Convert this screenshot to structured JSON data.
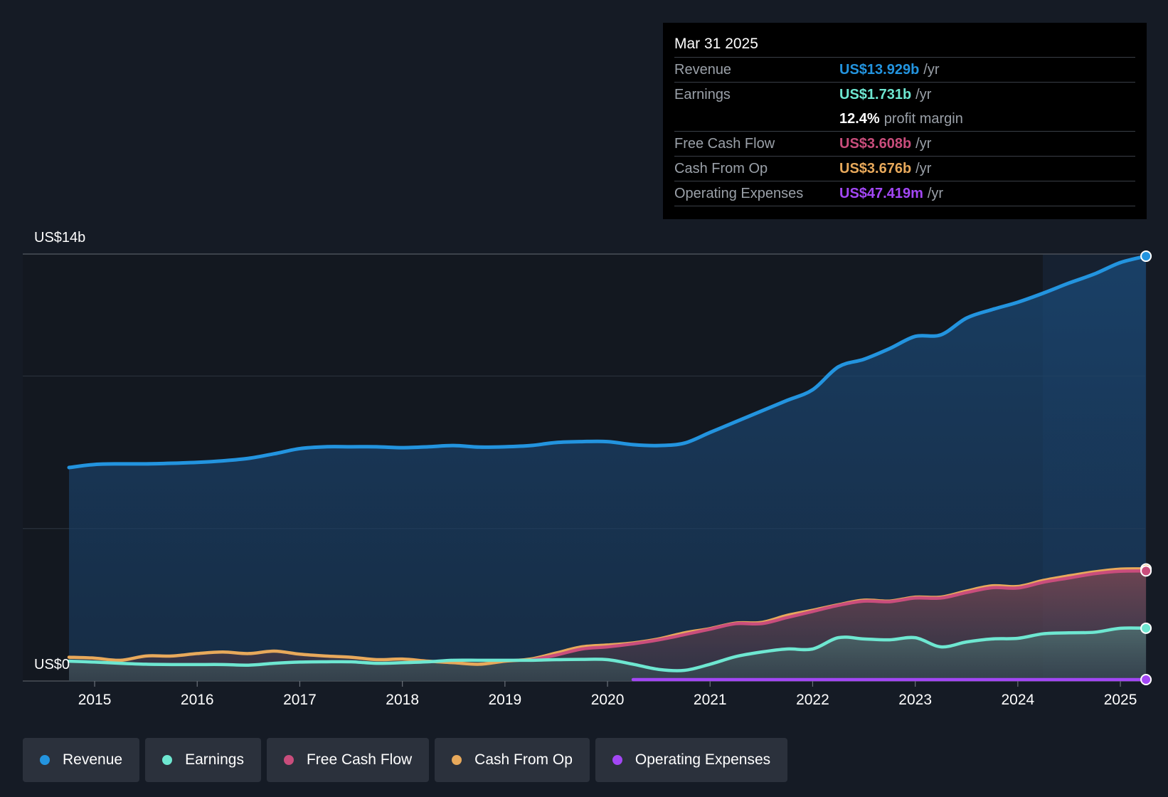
{
  "colors": {
    "revenue": "#2394df",
    "earnings": "#6ee7d1",
    "free_cash_flow": "#c94d7c",
    "cash_from_op": "#e8a95b",
    "operating_expenses": "#a347f5"
  },
  "tooltip": {
    "date": "Mar 31 2025",
    "rows": [
      {
        "label": "Revenue",
        "value": "US$13.929b",
        "unit": "/yr"
      },
      {
        "label": "Earnings",
        "value": "US$1.731b",
        "unit": "/yr"
      },
      {
        "label": "",
        "value": "12.4%",
        "unit": "profit margin"
      },
      {
        "label": "Free Cash Flow",
        "value": "US$3.608b",
        "unit": "/yr"
      },
      {
        "label": "Cash From Op",
        "value": "US$3.676b",
        "unit": "/yr"
      },
      {
        "label": "Operating Expenses",
        "value": "US$47.419m",
        "unit": "/yr"
      }
    ]
  },
  "legend": [
    {
      "label": "Revenue"
    },
    {
      "label": "Earnings"
    },
    {
      "label": "Free Cash Flow"
    },
    {
      "label": "Cash From Op"
    },
    {
      "label": "Operating Expenses"
    }
  ],
  "chart_data": {
    "type": "area",
    "title": "",
    "xlabel": "",
    "ylabel": "",
    "y_top_label": "US$14b",
    "y_bottom_label": "US$0",
    "xlim": [
      2014.5,
      2025.3
    ],
    "ylim": [
      0,
      14
    ],
    "x_ticks": [
      "2015",
      "2016",
      "2017",
      "2018",
      "2019",
      "2020",
      "2021",
      "2022",
      "2023",
      "2024",
      "2025"
    ],
    "series": [
      {
        "name": "Revenue",
        "x": [
          2014.75,
          2015,
          2015.25,
          2015.5,
          2015.75,
          2016,
          2016.25,
          2016.5,
          2016.75,
          2017,
          2017.25,
          2017.5,
          2017.75,
          2018,
          2018.25,
          2018.5,
          2018.75,
          2019,
          2019.25,
          2019.5,
          2019.75,
          2020,
          2020.25,
          2020.5,
          2020.75,
          2021,
          2021.25,
          2021.5,
          2021.75,
          2022,
          2022.25,
          2022.5,
          2022.75,
          2023,
          2023.25,
          2023.5,
          2023.75,
          2024,
          2024.25,
          2024.5,
          2024.75,
          2025,
          2025.25
        ],
        "values": [
          7.0,
          7.1,
          7.12,
          7.12,
          7.14,
          7.17,
          7.22,
          7.3,
          7.45,
          7.62,
          7.68,
          7.68,
          7.68,
          7.65,
          7.68,
          7.72,
          7.67,
          7.68,
          7.72,
          7.82,
          7.85,
          7.85,
          7.75,
          7.72,
          7.8,
          8.15,
          8.5,
          8.85,
          9.2,
          9.55,
          10.3,
          10.55,
          10.9,
          11.3,
          11.35,
          11.9,
          12.18,
          12.42,
          12.72,
          13.05,
          13.35,
          13.72,
          13.929
        ]
      },
      {
        "name": "Earnings",
        "x": [
          2014.75,
          2015,
          2015.25,
          2015.5,
          2015.75,
          2016,
          2016.25,
          2016.5,
          2016.75,
          2017,
          2017.25,
          2017.5,
          2017.75,
          2018,
          2018.25,
          2018.5,
          2018.75,
          2019,
          2019.25,
          2019.5,
          2019.75,
          2020,
          2020.25,
          2020.5,
          2020.75,
          2021,
          2021.25,
          2021.5,
          2021.75,
          2022,
          2022.25,
          2022.5,
          2022.75,
          2023,
          2023.25,
          2023.5,
          2023.75,
          2024,
          2024.25,
          2024.5,
          2024.75,
          2025,
          2025.25
        ],
        "values": [
          0.65,
          0.62,
          0.58,
          0.55,
          0.54,
          0.54,
          0.54,
          0.52,
          0.58,
          0.62,
          0.63,
          0.63,
          0.58,
          0.6,
          0.63,
          0.68,
          0.68,
          0.68,
          0.68,
          0.7,
          0.71,
          0.7,
          0.55,
          0.38,
          0.35,
          0.55,
          0.8,
          0.95,
          1.05,
          1.05,
          1.42,
          1.38,
          1.35,
          1.42,
          1.12,
          1.28,
          1.38,
          1.4,
          1.55,
          1.58,
          1.6,
          1.73,
          1.731
        ]
      },
      {
        "name": "Free Cash Flow",
        "x": [
          2019.25,
          2019.5,
          2019.75,
          2020,
          2020.25,
          2020.5,
          2020.75,
          2021,
          2021.25,
          2021.5,
          2021.75,
          2022,
          2022.25,
          2022.5,
          2022.75,
          2023,
          2023.25,
          2023.5,
          2023.75,
          2024,
          2024.25,
          2024.5,
          2024.75,
          2025,
          2025.25
        ],
        "values": [
          0.68,
          0.85,
          1.05,
          1.12,
          1.22,
          1.35,
          1.52,
          1.7,
          1.88,
          1.88,
          2.08,
          2.28,
          2.48,
          2.62,
          2.6,
          2.72,
          2.72,
          2.9,
          3.06,
          3.05,
          3.24,
          3.38,
          3.52,
          3.6,
          3.608
        ]
      },
      {
        "name": "Cash From Op",
        "x": [
          2014.75,
          2015,
          2015.25,
          2015.5,
          2015.75,
          2016,
          2016.25,
          2016.5,
          2016.75,
          2017,
          2017.25,
          2017.5,
          2017.75,
          2018,
          2018.25,
          2018.5,
          2018.75,
          2019,
          2019.25,
          2019.5,
          2019.75,
          2020,
          2020.25,
          2020.5,
          2020.75,
          2021,
          2021.25,
          2021.5,
          2021.75,
          2022,
          2022.25,
          2022.5,
          2022.75,
          2023,
          2023.25,
          2023.5,
          2023.75,
          2024,
          2024.25,
          2024.5,
          2024.75,
          2025,
          2025.25
        ],
        "values": [
          0.78,
          0.75,
          0.68,
          0.82,
          0.82,
          0.9,
          0.95,
          0.9,
          0.98,
          0.88,
          0.82,
          0.78,
          0.7,
          0.72,
          0.65,
          0.6,
          0.55,
          0.65,
          0.72,
          0.92,
          1.12,
          1.18,
          1.25,
          1.38,
          1.58,
          1.72,
          1.9,
          1.92,
          2.15,
          2.32,
          2.5,
          2.65,
          2.62,
          2.75,
          2.75,
          2.95,
          3.12,
          3.1,
          3.3,
          3.45,
          3.58,
          3.67,
          3.676
        ]
      },
      {
        "name": "Operating Expenses",
        "x": [
          2020.25,
          2020.5,
          2021,
          2021.5,
          2022,
          2022.5,
          2023,
          2023.5,
          2024,
          2024.5,
          2025,
          2025.25
        ],
        "values": [
          0.047,
          0.047,
          0.047,
          0.047,
          0.047,
          0.047,
          0.047,
          0.047,
          0.047,
          0.047,
          0.047,
          0.047
        ]
      }
    ]
  }
}
